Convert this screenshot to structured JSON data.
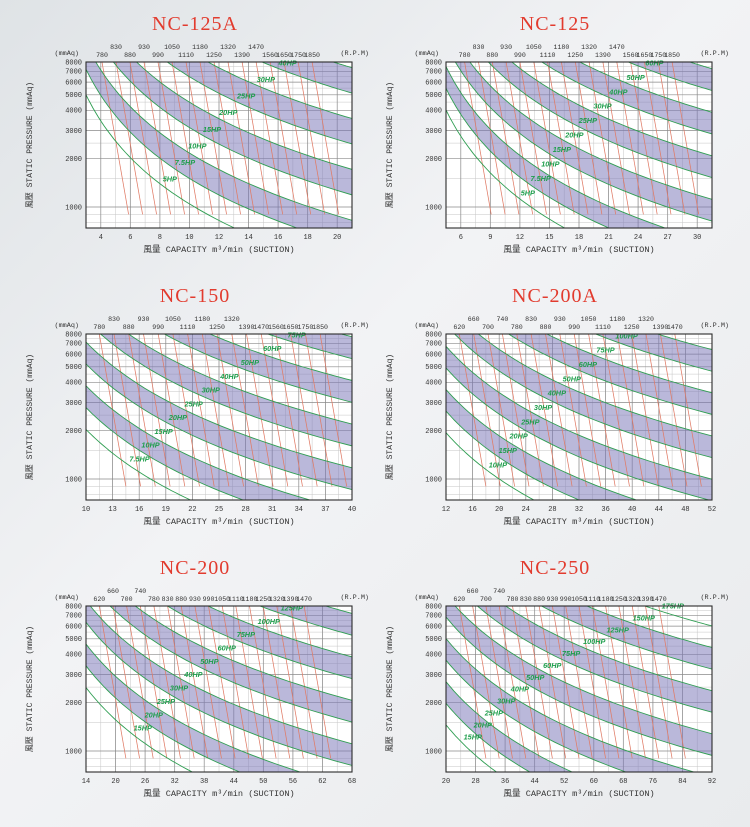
{
  "page": {
    "title_color": "#e23b2e"
  },
  "colors": {
    "band_fill": "#7a76b8",
    "rpm_line": "#e07b66",
    "hp_curve": "#2f9e52",
    "hp_text": "#1d9e4b",
    "grid_major": "#8a8a8a",
    "grid_minor": "#c6c6c6",
    "box": "#2b2b2b",
    "axis_text": "#333333",
    "plot_bg": "#ffffff"
  },
  "chart_data": [
    {
      "type": "line",
      "title": "NC-125A",
      "unit_left": "(mmAq)",
      "unit_right": "(R.P.M)",
      "xlabel": "風量 CAPACITY m³/min (SUCTION)",
      "ylabel": "風壓 STATIC PRESSURE (mmAq)",
      "xlim": [
        3,
        21
      ],
      "x_ticks": [
        4,
        6,
        8,
        10,
        12,
        14,
        16,
        18,
        20
      ],
      "x_minor_step": 1,
      "ylim": [
        740,
        8000
      ],
      "y_ticks": [
        1000,
        2000,
        3000,
        4000,
        5000,
        6000,
        7000,
        8000
      ],
      "rpm_labels": [
        [
          780,
          1
        ],
        [
          830,
          0
        ],
        [
          880,
          1
        ],
        [
          930,
          0
        ],
        [
          990,
          1
        ],
        [
          1050,
          0
        ],
        [
          1110,
          1
        ],
        [
          1180,
          0
        ],
        [
          1250,
          1
        ],
        [
          1320,
          0
        ],
        [
          1390,
          1
        ],
        [
          1470,
          0
        ],
        [
          1560,
          1
        ],
        [
          1650,
          1
        ],
        [
          1750,
          1
        ],
        [
          1850,
          1
        ]
      ],
      "rpm_span": [
        0.06,
        0.85
      ],
      "rpm_drop": 0.1,
      "hp_values": [
        5,
        7.5,
        10,
        15,
        20,
        25,
        30,
        40
      ],
      "hp_labels": [
        "5HP",
        "7.5HP",
        "10HP",
        "15HP",
        "20HP",
        "25HP",
        "30HP",
        "40HP"
      ],
      "q_top_min": 2.09,
      "q_top_max": 14.9,
      "gamma": 1.3,
      "label_p": [
        1400,
        7400
      ]
    },
    {
      "type": "line",
      "title": "NC-125",
      "unit_left": "(mmAq)",
      "unit_right": "(R.P.M)",
      "xlabel": "風量 CAPACITY m³/min (SUCTION)",
      "ylabel": "風壓 STATIC PRESSURE (mmAq)",
      "xlim": [
        4.5,
        31.5
      ],
      "x_ticks": [
        6,
        9,
        12,
        15,
        18,
        21,
        24,
        27,
        30
      ],
      "x_minor_step": 1.5,
      "ylim": [
        740,
        8000
      ],
      "y_ticks": [
        1000,
        2000,
        3000,
        4000,
        5000,
        6000,
        7000,
        8000
      ],
      "rpm_labels": [
        [
          780,
          1
        ],
        [
          830,
          0
        ],
        [
          880,
          1
        ],
        [
          930,
          0
        ],
        [
          990,
          1
        ],
        [
          1050,
          0
        ],
        [
          1110,
          1
        ],
        [
          1180,
          0
        ],
        [
          1250,
          1
        ],
        [
          1320,
          0
        ],
        [
          1390,
          1
        ],
        [
          1470,
          0
        ],
        [
          1560,
          1
        ],
        [
          1650,
          1
        ],
        [
          1750,
          1
        ],
        [
          1850,
          1
        ]
      ],
      "rpm_span": [
        0.07,
        0.85
      ],
      "rpm_drop": 0.1,
      "hp_values": [
        5,
        7.5,
        10,
        15,
        20,
        25,
        30,
        40,
        50,
        60
      ],
      "hp_labels": [
        "5HP",
        "7.5HP",
        "10HP",
        "15HP",
        "20HP",
        "25HP",
        "30HP",
        "40HP",
        "50HP",
        "60HP"
      ],
      "q_top_min": 2.65,
      "q_top_max": 23.0,
      "gamma": 1.3,
      "label_p": [
        1150,
        7400
      ]
    },
    {
      "type": "line",
      "title": "NC-150",
      "unit_left": "(mmAq)",
      "unit_right": "(R.P.M)",
      "xlabel": "風量 CAPACITY m³/min (SUCTION)",
      "ylabel": "風壓 STATIC PRESSURE (mmAq)",
      "xlim": [
        10,
        40
      ],
      "x_ticks": [
        10,
        13,
        16,
        19,
        22,
        25,
        28,
        31,
        34,
        37,
        40
      ],
      "x_minor_step": 1.5,
      "ylim": [
        740,
        8000
      ],
      "y_ticks": [
        1000,
        2000,
        3000,
        4000,
        5000,
        6000,
        7000,
        8000
      ],
      "rpm_labels": [
        [
          780,
          1
        ],
        [
          830,
          0
        ],
        [
          880,
          1
        ],
        [
          930,
          0
        ],
        [
          990,
          1
        ],
        [
          1050,
          0
        ],
        [
          1110,
          1
        ],
        [
          1180,
          0
        ],
        [
          1250,
          1
        ],
        [
          1320,
          0
        ],
        [
          1390,
          1
        ],
        [
          1470,
          1
        ],
        [
          1560,
          1
        ],
        [
          1650,
          1
        ],
        [
          1750,
          1
        ],
        [
          1850,
          1
        ]
      ],
      "rpm_span": [
        0.05,
        0.88
      ],
      "rpm_drop": 0.1,
      "hp_values": [
        7.5,
        10,
        15,
        20,
        25,
        30,
        40,
        50,
        60,
        75
      ],
      "hp_labels": [
        "7.5HP",
        "10HP",
        "15HP",
        "20HP",
        "25HP",
        "30HP",
        "40HP",
        "50HP",
        "60HP",
        "75HP"
      ],
      "q_top_min": 3.49,
      "q_top_max": 30.5,
      "gamma": 1.3,
      "label_p": [
        1250,
        7400
      ]
    },
    {
      "type": "line",
      "title": "NC-200A",
      "unit_left": "(mmAq)",
      "unit_right": "(R.P.M)",
      "xlabel": "風量 CAPACITY m³/min (SUCTION)",
      "ylabel": "風壓 STATIC PRESSURE (mmAq)",
      "xlim": [
        12,
        52
      ],
      "x_ticks": [
        12,
        16,
        20,
        24,
        28,
        32,
        36,
        40,
        44,
        48,
        52
      ],
      "x_minor_step": 2,
      "ylim": [
        740,
        8000
      ],
      "y_ticks": [
        1000,
        2000,
        3000,
        4000,
        5000,
        6000,
        7000,
        8000
      ],
      "rpm_labels": [
        [
          620,
          1
        ],
        [
          660,
          0
        ],
        [
          700,
          1
        ],
        [
          740,
          0
        ],
        [
          780,
          1
        ],
        [
          830,
          0
        ],
        [
          880,
          1
        ],
        [
          930,
          0
        ],
        [
          990,
          1
        ],
        [
          1050,
          0
        ],
        [
          1110,
          1
        ],
        [
          1180,
          0
        ],
        [
          1250,
          1
        ],
        [
          1320,
          0
        ],
        [
          1390,
          1
        ],
        [
          1470,
          1
        ]
      ],
      "rpm_span": [
        0.05,
        0.86
      ],
      "rpm_drop": 0.1,
      "hp_values": [
        10,
        15,
        20,
        25,
        30,
        40,
        50,
        60,
        75,
        100
      ],
      "hp_labels": [
        "10HP",
        "15HP",
        "20HP",
        "25HP",
        "30HP",
        "40HP",
        "50HP",
        "60HP",
        "75HP",
        "100HP"
      ],
      "q_top_min": 4.04,
      "q_top_max": 34.5,
      "gamma": 1.3,
      "label_p": [
        1150,
        7300
      ]
    },
    {
      "type": "line",
      "title": "NC-200",
      "unit_left": "(mmAq)",
      "unit_right": "(R.P.M)",
      "xlabel": "風量 CAPACITY m³/min (SUCTION)",
      "ylabel": "風壓 STATIC PRESSURE (mmAq)",
      "xlim": [
        14,
        68
      ],
      "x_ticks": [
        14,
        20,
        26,
        32,
        38,
        44,
        50,
        56,
        62,
        68
      ],
      "x_minor_step": 3,
      "ylim": [
        740,
        8000
      ],
      "y_ticks": [
        1000,
        2000,
        3000,
        4000,
        5000,
        6000,
        7000,
        8000
      ],
      "rpm_labels": [
        [
          620,
          1
        ],
        [
          660,
          0
        ],
        [
          700,
          1
        ],
        [
          740,
          0
        ],
        [
          780,
          1
        ],
        [
          830,
          1
        ],
        [
          880,
          1
        ],
        [
          930,
          1
        ],
        [
          990,
          1
        ],
        [
          1050,
          1
        ],
        [
          1110,
          1
        ],
        [
          1180,
          1
        ],
        [
          1250,
          1
        ],
        [
          1320,
          1
        ],
        [
          1390,
          1
        ],
        [
          1470,
          1
        ]
      ],
      "rpm_span": [
        0.05,
        0.82
      ],
      "rpm_drop": 0.1,
      "hp_values": [
        15,
        20,
        25,
        30,
        40,
        50,
        60,
        75,
        100,
        125
      ],
      "hp_labels": [
        "15HP",
        "20HP",
        "25HP",
        "30HP",
        "40HP",
        "50HP",
        "60HP",
        "75HP",
        "100HP",
        "125HP"
      ],
      "q_top_min": 5.7,
      "q_top_max": 49.3,
      "gamma": 1.3,
      "label_p": [
        1300,
        7300
      ]
    },
    {
      "type": "line",
      "title": "NC-250",
      "unit_left": "(mmAq)",
      "unit_right": "(R.P.M)",
      "xlabel": "風量 CAPACITY m³/min (SUCTION)",
      "ylabel": "風壓 STATIC PRESSURE (mmAq)",
      "xlim": [
        20,
        92
      ],
      "x_ticks": [
        20,
        28,
        36,
        44,
        52,
        60,
        68,
        76,
        84,
        92
      ],
      "x_minor_step": 4,
      "ylim": [
        740,
        8000
      ],
      "y_ticks": [
        1000,
        2000,
        3000,
        4000,
        5000,
        6000,
        7000,
        8000
      ],
      "rpm_labels": [
        [
          620,
          1
        ],
        [
          660,
          0
        ],
        [
          700,
          1
        ],
        [
          740,
          0
        ],
        [
          780,
          1
        ],
        [
          830,
          1
        ],
        [
          880,
          1
        ],
        [
          930,
          1
        ],
        [
          990,
          1
        ],
        [
          1050,
          1
        ],
        [
          1110,
          1
        ],
        [
          1180,
          1
        ],
        [
          1250,
          1
        ],
        [
          1320,
          1
        ],
        [
          1390,
          1
        ],
        [
          1470,
          1
        ]
      ],
      "rpm_span": [
        0.05,
        0.8
      ],
      "rpm_drop": 0.1,
      "hp_values": [
        15,
        20,
        25,
        30,
        40,
        50,
        60,
        75,
        100,
        125,
        150,
        175
      ],
      "hp_labels": [
        "15HP",
        "20HP",
        "25HP",
        "30HP",
        "40HP",
        "50HP",
        "60HP",
        "75HP",
        "100HP",
        "125HP",
        "150HP",
        "175HP"
      ],
      "q_top_min": 5.39,
      "q_top_max": 73.8,
      "gamma": 1.3,
      "label_p": [
        1150,
        7500
      ]
    }
  ]
}
